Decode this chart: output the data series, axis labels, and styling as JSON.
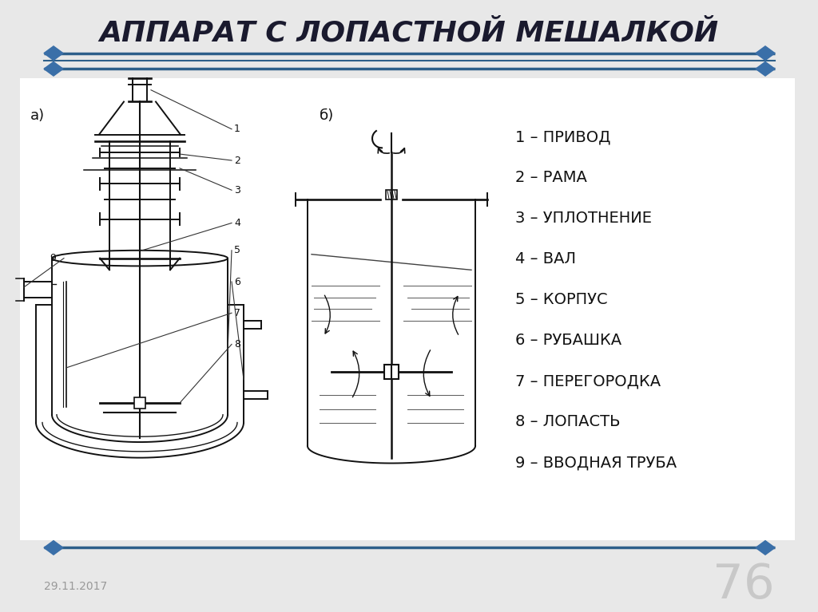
{
  "title": "АППАРАТ С ЛОПАСТНОЙ МЕШАЛКОЙ",
  "bg_color": "#e8e8e8",
  "title_color": "#1a1a2e",
  "separator_color": "#2d5f8a",
  "diamond_color": "#3a6fa8",
  "labels": [
    "1 – ПРИВОД",
    "2 – РАМА",
    "3 – УПЛОТНЕНИЕ",
    "4 – ВАЛ",
    "5 – КОРПУС",
    "6 – РУБАШКА",
    "7 – ПЕРЕГОРОДКА",
    "8 – ЛОПАСТЬ",
    "9 – ВВОДНАЯ ТРУБА"
  ],
  "label_a": "а)",
  "label_b": "б)",
  "date_text": "29.11.2017",
  "page_number": "76",
  "white_bg": "#ffffff",
  "draw_color": "#111111",
  "date_color": "#999999",
  "page_color": "#bbbbbb"
}
